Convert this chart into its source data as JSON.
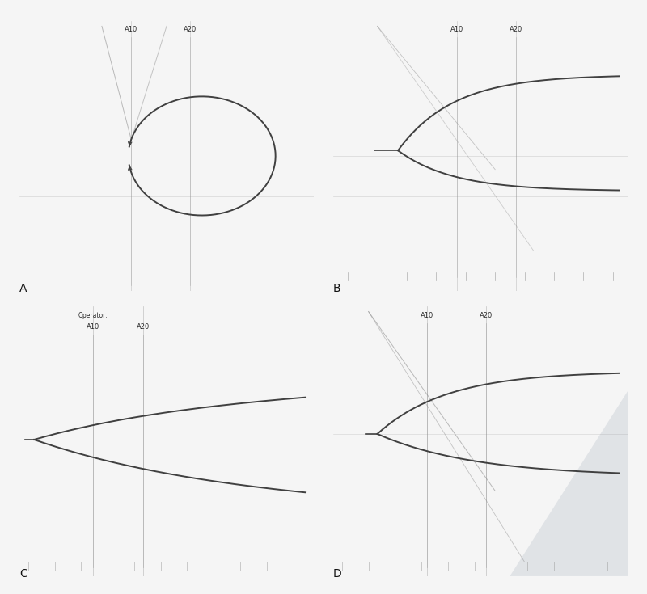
{
  "outer_bg": "#e0e0e0",
  "panel_bg_A": "#c8c8cc",
  "panel_bg_B": "#c0c4c8",
  "panel_bg_C": "#ccc8bc",
  "panel_bg_D": "#bcc0c4",
  "line_color": "#404040",
  "grid_color": "#909090",
  "label_color": "#2a2a2a",
  "panel_labels": [
    "A",
    "B",
    "C",
    "D"
  ],
  "white_bg": "#f5f5f5",
  "border_outer": "#bbbbbb"
}
